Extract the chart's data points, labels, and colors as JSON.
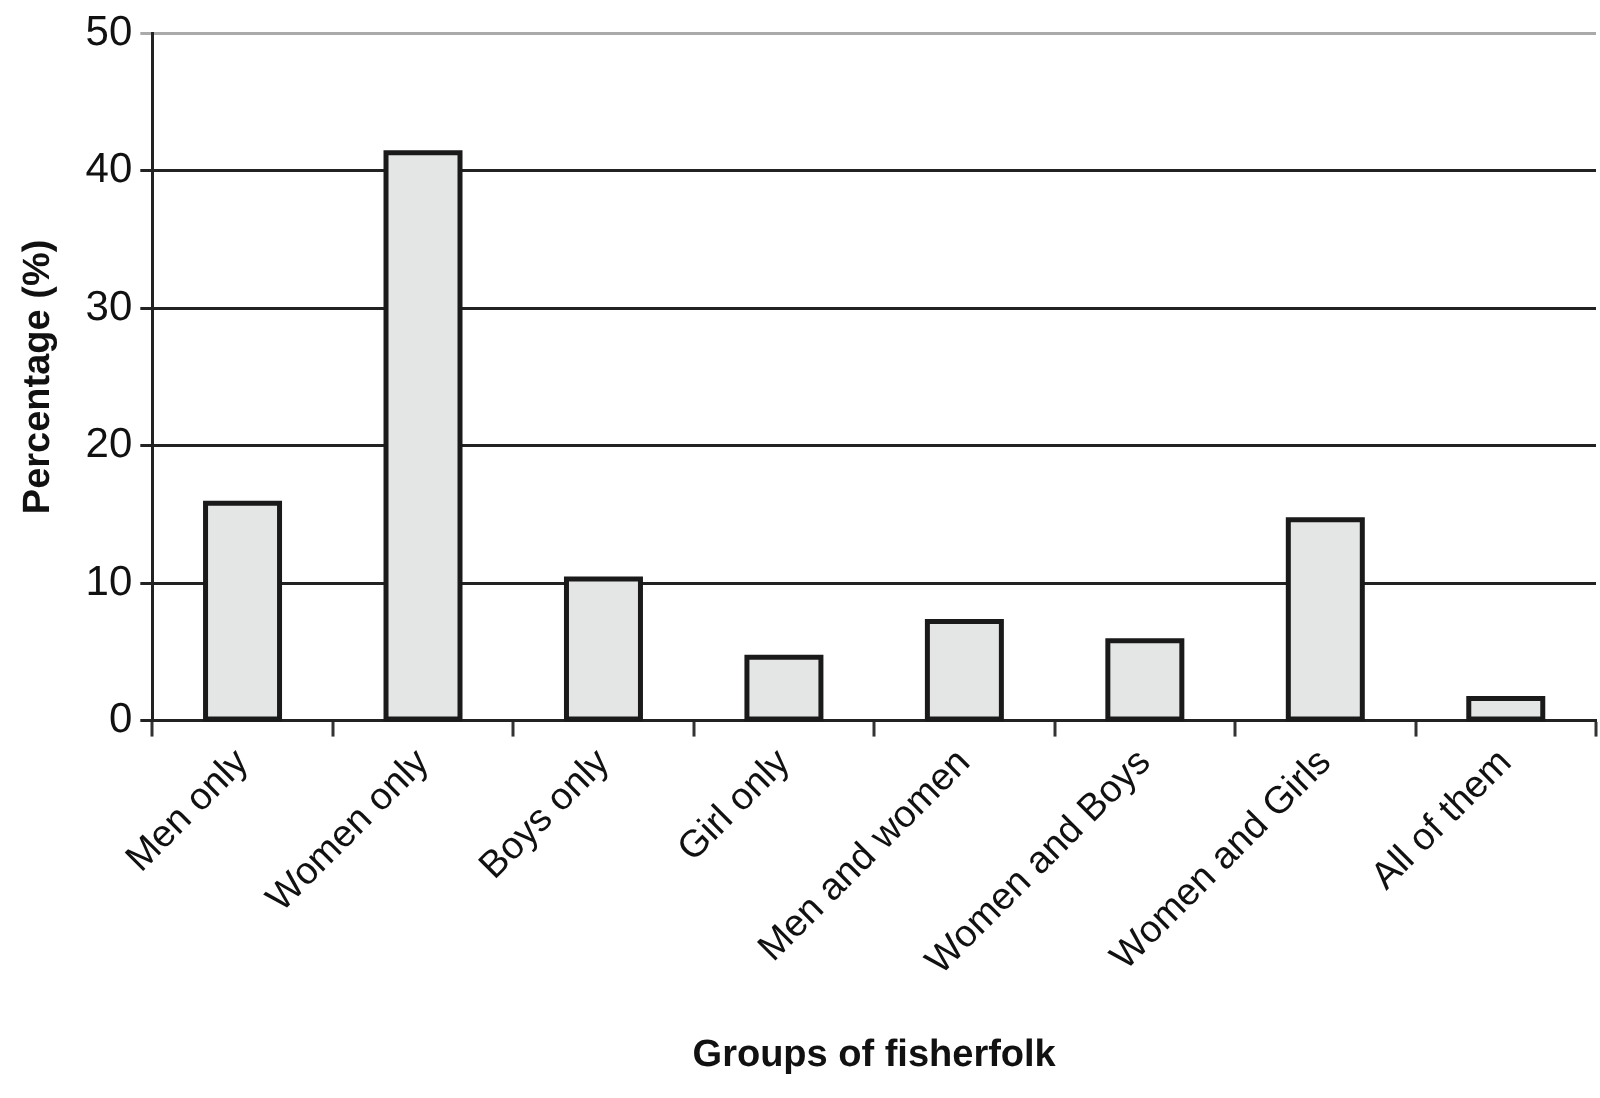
{
  "chart_data": {
    "type": "bar",
    "xlabel": "Groups of fisherfolk",
    "ylabel": "Percentage (%)",
    "categories": [
      "Men only",
      "Women only",
      "Boys only",
      "Girl only",
      "Men and women",
      "Women and Boys",
      "Women and Girls",
      "All of them"
    ],
    "values": [
      15.8,
      41.3,
      10.3,
      4.6,
      7.2,
      5.8,
      14.6,
      1.6
    ],
    "color": "#e4e6e6",
    "ylim": [
      0,
      50
    ],
    "yticks": [
      0,
      10,
      20,
      30,
      40,
      50
    ],
    "grid": "y",
    "legend": false
  }
}
